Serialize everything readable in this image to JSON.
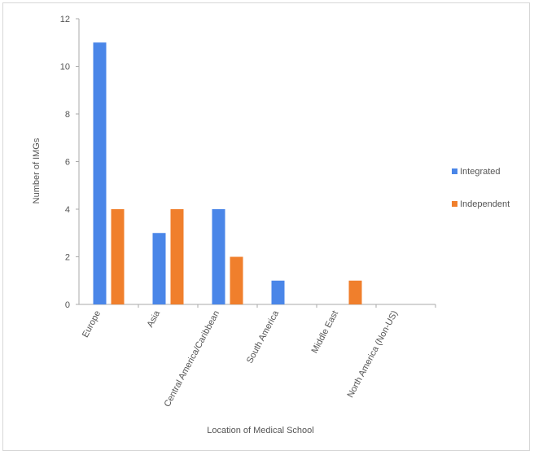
{
  "chart_data": {
    "type": "bar",
    "categories": [
      "Europe",
      "Asia",
      "Central America/Caribbean",
      "South America",
      "Middle East",
      "North America (Non-US)"
    ],
    "series": [
      {
        "name": "Integrated",
        "values": [
          11,
          3,
          4,
          1,
          0,
          0
        ],
        "color": "#4a86e8"
      },
      {
        "name": "Independent",
        "values": [
          4,
          4,
          2,
          0,
          1,
          0
        ],
        "color": "#f07f2c"
      }
    ],
    "xlabel": "Location of Medical School",
    "ylabel": "Number of IMGs",
    "ylim": [
      0,
      12
    ],
    "yticks": [
      "0",
      "2",
      "4",
      "6",
      "8",
      "10",
      "12"
    ],
    "grid": false,
    "legend_position": "right"
  }
}
